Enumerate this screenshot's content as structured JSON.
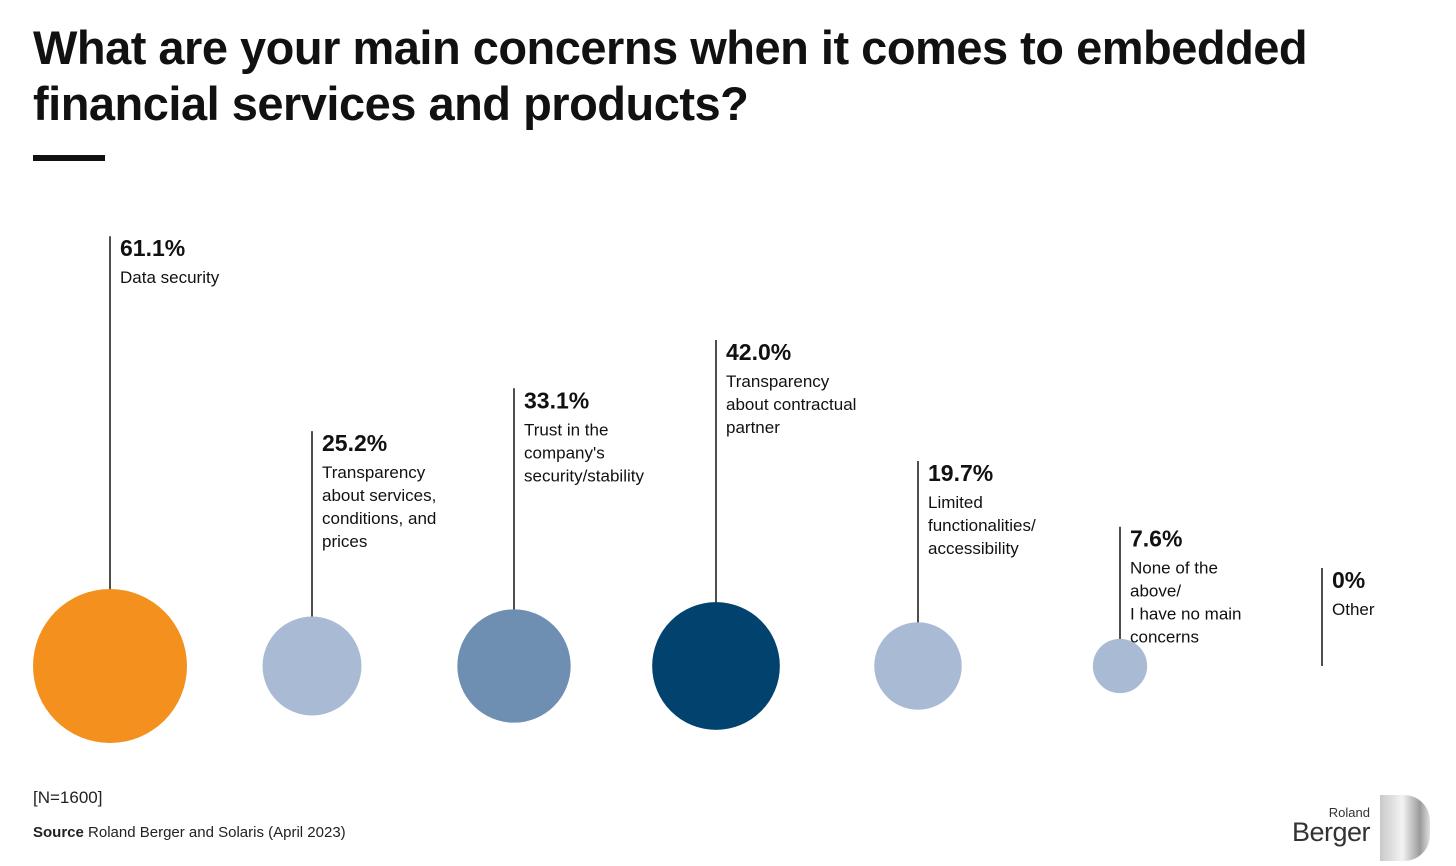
{
  "title": "What are your main concerns when it comes to embedded financial services and products?",
  "sample_note": "[N=1600]",
  "source": {
    "label": "Source",
    "text": "Roland Berger and Solaris (April 2023)"
  },
  "logo": {
    "line1": "Roland",
    "line2": "Berger"
  },
  "colors": {
    "orange": "#F4901E",
    "light_blue": "#A9BAD4",
    "mid_blue": "#6F8FB2",
    "navy": "#01426E"
  },
  "chart_data": {
    "type": "bubble",
    "unit": "%",
    "items": [
      {
        "value": 61.1,
        "value_label": "61.1%",
        "label_lines": [
          "Data security"
        ],
        "color": "#F4901E"
      },
      {
        "value": 25.2,
        "value_label": "25.2%",
        "label_lines": [
          "Transparency",
          "about services,",
          "conditions, and",
          "prices"
        ],
        "color": "#A9BAD4"
      },
      {
        "value": 33.1,
        "value_label": "33.1%",
        "label_lines": [
          "Trust in the",
          "company's",
          "security/stability"
        ],
        "color": "#6F8FB2"
      },
      {
        "value": 42.0,
        "value_label": "42.0%",
        "label_lines": [
          "Transparency",
          "about contractual",
          "partner"
        ],
        "color": "#01426E"
      },
      {
        "value": 19.7,
        "value_label": "19.7%",
        "label_lines": [
          "Limited",
          "functionalities/",
          "accessibility"
        ],
        "color": "#A9BAD4"
      },
      {
        "value": 7.6,
        "value_label": "7.6%",
        "label_lines": [
          "None of the",
          "above/",
          "I have no main",
          "concerns"
        ],
        "color": "#A9BAD4"
      },
      {
        "value": 0,
        "value_label": "0%",
        "label_lines": [
          "Other"
        ],
        "color": "#A9BAD4"
      }
    ]
  }
}
